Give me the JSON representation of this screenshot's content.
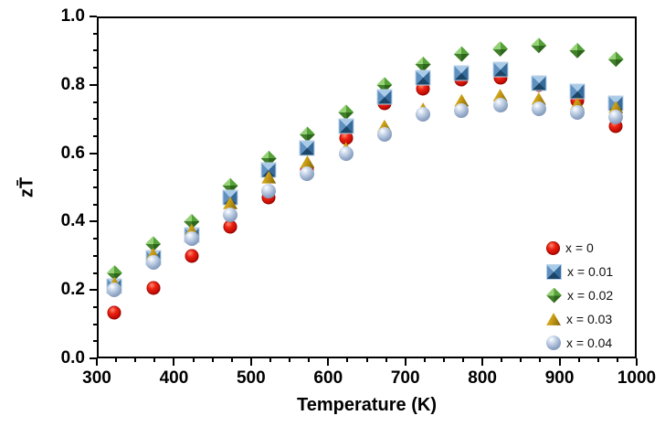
{
  "chart_data": {
    "type": "scatter",
    "title": "",
    "xlabel": "Temperature (K)",
    "ylabel": "zT̄",
    "xlim": [
      300,
      1000
    ],
    "ylim": [
      0.0,
      1.0
    ],
    "x_major_step": 100,
    "x_minor_step": 25,
    "y_major_step": 0.2,
    "y_minor_step": 0.05,
    "x_tick_labels": [
      "300",
      "400",
      "500",
      "600",
      "700",
      "800",
      "900",
      "1000"
    ],
    "y_tick_labels": [
      "0.0",
      "0.2",
      "0.4",
      "0.6",
      "0.8",
      "1.0"
    ],
    "grid": false,
    "legend_position": "inside-lower-right",
    "x": [
      323,
      373,
      423,
      473,
      523,
      573,
      623,
      673,
      723,
      773,
      823,
      873,
      923,
      973
    ],
    "series": [
      {
        "name": "x = 0",
        "marker": "circle",
        "color": "#c00a02",
        "values": [
          0.135,
          0.205,
          0.3,
          0.385,
          0.47,
          0.55,
          0.645,
          0.745,
          0.79,
          0.815,
          0.82,
          0.8,
          0.755,
          0.68
        ]
      },
      {
        "name": "x = 0.01",
        "marker": "square",
        "color": "#3f7cac",
        "values": [
          0.21,
          0.295,
          0.36,
          0.47,
          0.55,
          0.615,
          0.68,
          0.765,
          0.82,
          0.835,
          0.845,
          0.805,
          0.78,
          0.745
        ]
      },
      {
        "name": "x = 0.02",
        "marker": "diamond",
        "color": "#4e9a3c",
        "values": [
          0.25,
          0.335,
          0.4,
          0.505,
          0.585,
          0.655,
          0.72,
          0.8,
          0.86,
          0.89,
          0.905,
          0.915,
          0.9,
          0.875
        ]
      },
      {
        "name": "x = 0.03",
        "marker": "triangle",
        "color": "#b8960c",
        "values": [
          0.22,
          0.305,
          0.375,
          0.455,
          0.53,
          0.575,
          0.615,
          0.68,
          0.73,
          0.755,
          0.77,
          0.76,
          0.745,
          0.735
        ]
      },
      {
        "name": "x = 0.04",
        "marker": "ball",
        "color": "#93a9c8",
        "values": [
          0.2,
          0.28,
          0.35,
          0.42,
          0.49,
          0.54,
          0.6,
          0.655,
          0.715,
          0.725,
          0.74,
          0.73,
          0.72,
          0.705
        ]
      }
    ],
    "draw_order": [
      "x = 0",
      "x = 0.02",
      "x = 0.01",
      "x = 0.03",
      "x = 0.04"
    ]
  }
}
